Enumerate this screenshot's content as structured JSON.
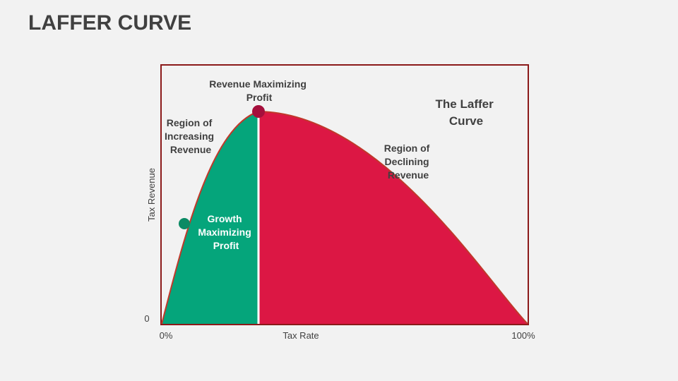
{
  "title": "LAFFER CURVE",
  "axes": {
    "y_label": "Tax Revenue",
    "y_origin": "0",
    "x_start": "0%",
    "x_label": "Tax Rate",
    "x_end": "100%"
  },
  "labels": {
    "peak": [
      "Revenue Maximizing",
      "Profit"
    ],
    "increasing": [
      "Region of",
      "Increasing",
      "Revenue"
    ],
    "declining": [
      "Region of",
      "Declining",
      "Revenue"
    ],
    "growth": [
      "Growth",
      "Maximizing",
      "Profit"
    ],
    "curve_name": [
      "The Laffer",
      "Curve"
    ]
  },
  "colors": {
    "frame": "#8b1a1a",
    "growth_region": "#05a57b",
    "declining_region": "#dc1744",
    "curve_line": "#c0392b",
    "peak_dot": "#a50f3c",
    "growth_dot": "#0b8a64",
    "divider": "#ffffff"
  }
}
